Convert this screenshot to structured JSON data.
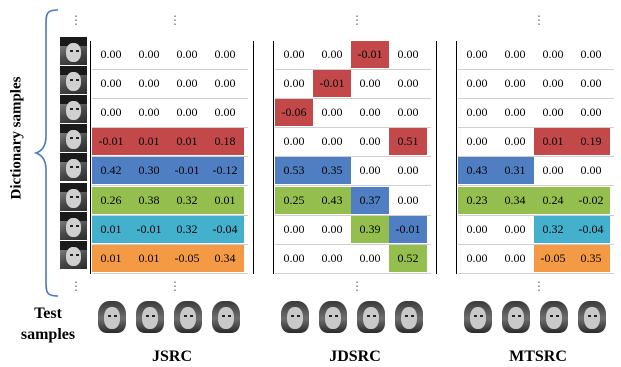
{
  "labels": {
    "dictionary": "Dictionary samples",
    "test_line1": "Test",
    "test_line2": "samples"
  },
  "ellipsis": "⋮",
  "colors": {
    "red": "#c3484a",
    "blue": "#4f7fc2",
    "green": "#94bf4f",
    "teal": "#43b0cc",
    "orange": "#f49a44"
  },
  "methods": [
    {
      "name": "JSRC",
      "rows": [
        {
          "values": [
            "0.00",
            "0.00",
            "0.00",
            "0.00"
          ],
          "colors": [
            "",
            "",
            "",
            ""
          ]
        },
        {
          "values": [
            "0.00",
            "0.00",
            "0.00",
            "0.00"
          ],
          "colors": [
            "",
            "",
            "",
            ""
          ]
        },
        {
          "values": [
            "0.00",
            "0.00",
            "0.00",
            "0.00"
          ],
          "colors": [
            "",
            "",
            "",
            ""
          ]
        },
        {
          "values": [
            "-0.01",
            "0.01",
            "0.01",
            "0.18"
          ],
          "colors": [
            "red",
            "red",
            "red",
            "red"
          ]
        },
        {
          "values": [
            "0.42",
            "0.30",
            "-0.01",
            "-0.12"
          ],
          "colors": [
            "blue",
            "blue",
            "blue",
            "blue"
          ]
        },
        {
          "values": [
            "0.26",
            "0.38",
            "0.32",
            "0.01"
          ],
          "colors": [
            "green",
            "green",
            "green",
            "green"
          ]
        },
        {
          "values": [
            "0.01",
            "-0.01",
            "0.32",
            "-0.04"
          ],
          "colors": [
            "teal",
            "teal",
            "teal",
            "teal"
          ]
        },
        {
          "values": [
            "0.01",
            "0.01",
            "-0.05",
            "0.34"
          ],
          "colors": [
            "orange",
            "orange",
            "orange",
            "orange"
          ]
        }
      ]
    },
    {
      "name": "JDSRC",
      "rows": [
        {
          "values": [
            "0.00",
            "0.00",
            "-0.01",
            "0.00"
          ],
          "colors": [
            "",
            "",
            "red",
            ""
          ]
        },
        {
          "values": [
            "0.00",
            "-0.01",
            "0.00",
            "0.00"
          ],
          "colors": [
            "",
            "red",
            "",
            ""
          ]
        },
        {
          "values": [
            "-0.06",
            "0.00",
            "0.00",
            "0.00"
          ],
          "colors": [
            "red",
            "",
            "",
            ""
          ]
        },
        {
          "values": [
            "0.00",
            "0.00",
            "0.00",
            "0.51"
          ],
          "colors": [
            "",
            "",
            "",
            "red"
          ]
        },
        {
          "values": [
            "0.53",
            "0.35",
            "0.00",
            "0.00"
          ],
          "colors": [
            "blue",
            "blue",
            "",
            ""
          ]
        },
        {
          "values": [
            "0.25",
            "0.43",
            "0.37",
            "0.00"
          ],
          "colors": [
            "green",
            "green",
            "blue",
            ""
          ]
        },
        {
          "values": [
            "0.00",
            "0.00",
            "0.39",
            "-0.01"
          ],
          "colors": [
            "",
            "",
            "green",
            "blue"
          ]
        },
        {
          "values": [
            "0.00",
            "0.00",
            "0.00",
            "0.52"
          ],
          "colors": [
            "",
            "",
            "",
            "green"
          ]
        }
      ]
    },
    {
      "name": "MTSRC",
      "rows": [
        {
          "values": [
            "0.00",
            "0.00",
            "0.00",
            "0.00"
          ],
          "colors": [
            "",
            "",
            "",
            ""
          ]
        },
        {
          "values": [
            "0.00",
            "0.00",
            "0.00",
            "0.00"
          ],
          "colors": [
            "",
            "",
            "",
            ""
          ]
        },
        {
          "values": [
            "0.00",
            "0.00",
            "0.00",
            "0.00"
          ],
          "colors": [
            "",
            "",
            "",
            ""
          ]
        },
        {
          "values": [
            "0.00",
            "0.00",
            "0.01",
            "0.19"
          ],
          "colors": [
            "",
            "",
            "red",
            "red"
          ]
        },
        {
          "values": [
            "0.43",
            "0.31",
            "0.00",
            "0.00"
          ],
          "colors": [
            "blue",
            "blue",
            "",
            ""
          ]
        },
        {
          "values": [
            "0.23",
            "0.34",
            "0.24",
            "-0.02"
          ],
          "colors": [
            "green",
            "green",
            "green",
            "green"
          ]
        },
        {
          "values": [
            "0.00",
            "0.00",
            "0.32",
            "-0.04"
          ],
          "colors": [
            "",
            "",
            "teal",
            "teal"
          ]
        },
        {
          "values": [
            "0.00",
            "0.00",
            "-0.05",
            "0.35"
          ],
          "colors": [
            "",
            "",
            "orange",
            "orange"
          ]
        }
      ]
    }
  ]
}
